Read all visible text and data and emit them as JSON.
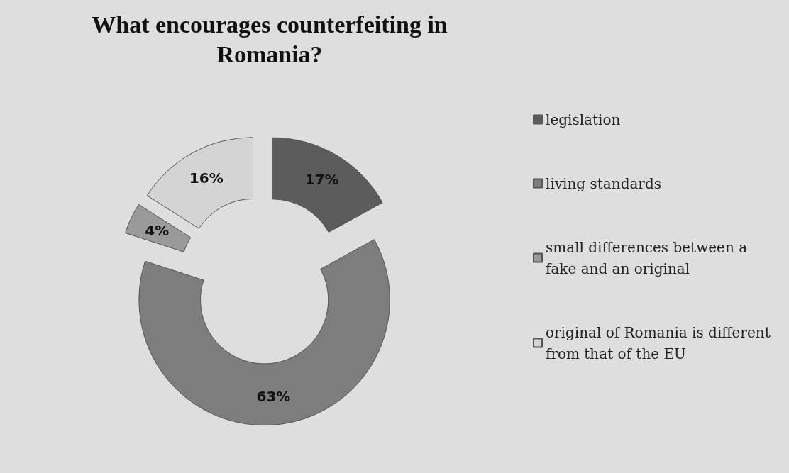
{
  "chart_data": {
    "type": "donut",
    "title": "What encourages counterfeiting in\nRomania?",
    "categories": [
      "legislation",
      "living standards",
      "small differences between a fake and an original",
      "original of Romania is different from that of the EU"
    ],
    "values": [
      17,
      63,
      4,
      16
    ],
    "colors": [
      "#5c5c5c",
      "#7d7d7d",
      "#9a9a9a",
      "#d4d4d4"
    ],
    "value_labels": [
      "17%",
      "63%",
      "4%",
      "16%"
    ],
    "legend": "right"
  }
}
